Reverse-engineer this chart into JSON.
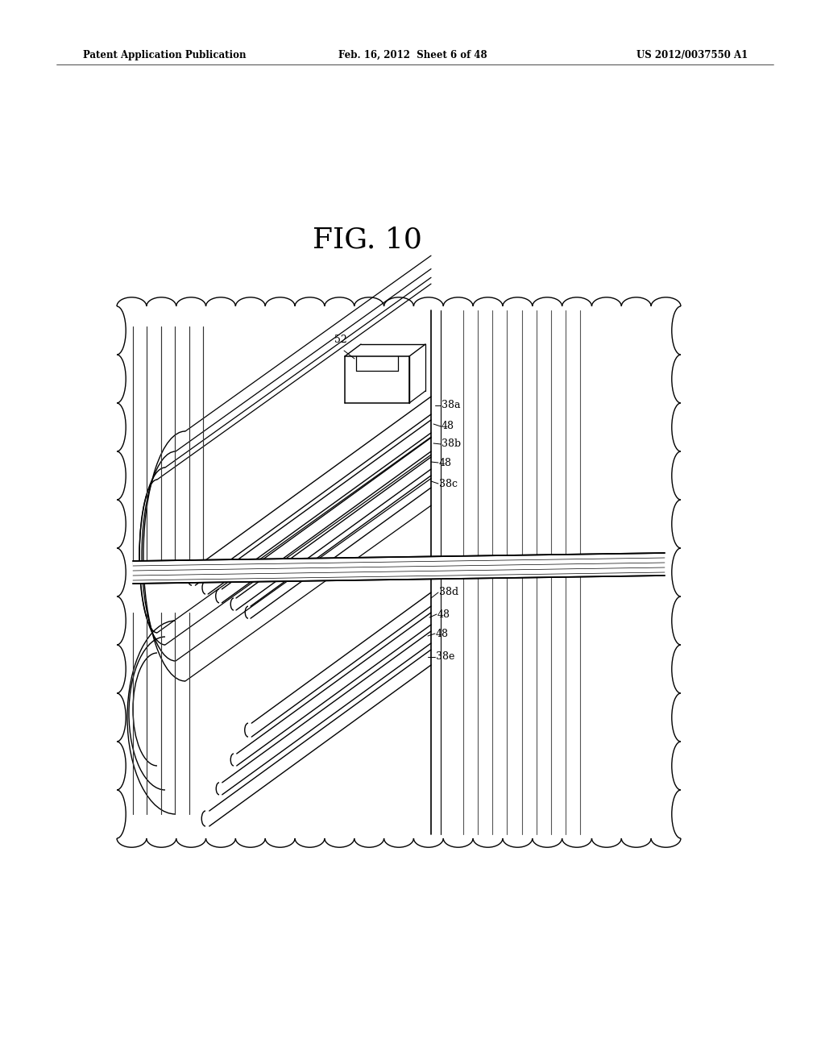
{
  "header_left": "Patent Application Publication",
  "header_center": "Feb. 16, 2012  Sheet 6 of 48",
  "header_right": "US 2012/0037550 A1",
  "fig_title": "FIG. 10",
  "bg": "#ffffff",
  "ink": "#000000",
  "gray1": "#888888",
  "gray2": "#555555"
}
